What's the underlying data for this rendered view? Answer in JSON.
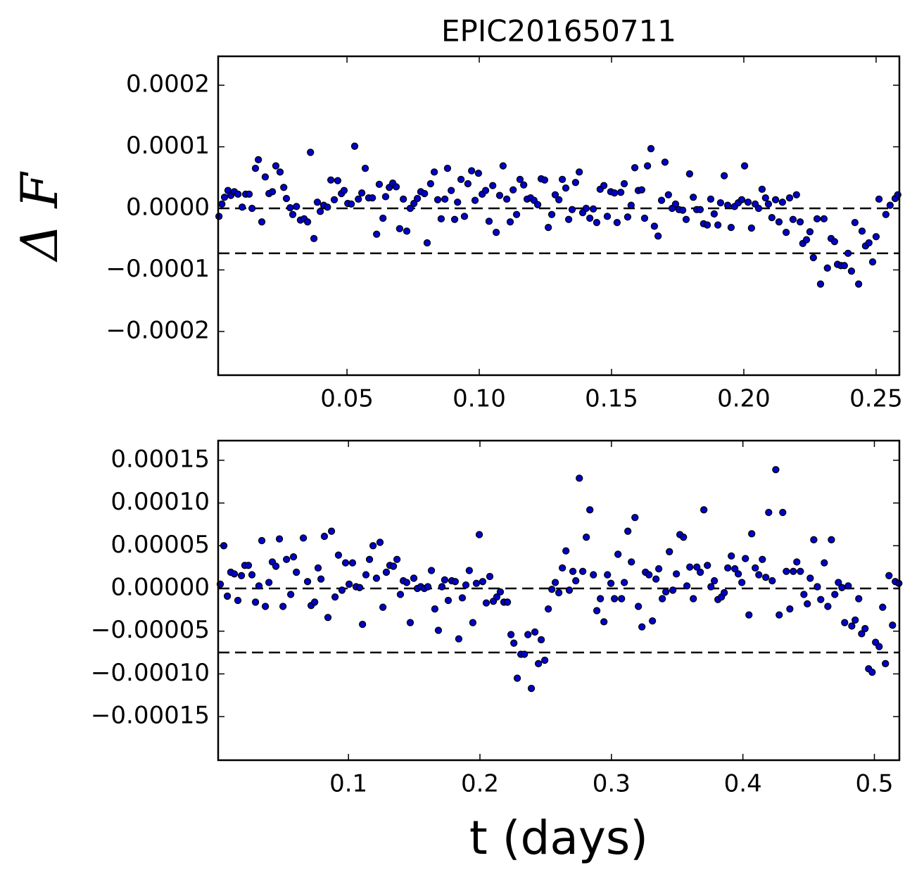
{
  "chart_data": [
    {
      "type": "scatter",
      "title": "EPIC201650711",
      "ylabel": "Δ F",
      "color": "#0000cc",
      "xlim": [
        0.0013,
        0.2588
      ],
      "ylim": [
        -0.000271,
        0.000247
      ],
      "xticks": [
        0.05,
        {
          "value": 0.1,
          "label": "0.10"
        },
        0.15,
        {
          "value": 0.2,
          "label": "0.20"
        },
        0.25
      ],
      "yticks": [
        {
          "value": -0.0002,
          "label": "−0.0002"
        },
        {
          "value": -0.0001,
          "label": "−0.0001"
        },
        {
          "value": 0,
          "label": "0.0000"
        },
        0.0001,
        0.0002
      ],
      "hlines": [
        0,
        -7.3e-05
      ],
      "x": [
        0.0016,
        0.0027,
        0.0037,
        0.005,
        0.0061,
        0.0074,
        0.0088,
        0.0104,
        0.0117,
        0.013,
        0.0141,
        0.0154,
        0.0165,
        0.0178,
        0.0191,
        0.0205,
        0.0218,
        0.0231,
        0.0247,
        0.0261,
        0.0271,
        0.0285,
        0.0295,
        0.0309,
        0.0324,
        0.0338,
        0.0351,
        0.0362,
        0.0375,
        0.0388,
        0.0399,
        0.0412,
        0.0426,
        0.0439,
        0.0452,
        0.0465,
        0.0479,
        0.0489,
        0.0503,
        0.0516,
        0.0529,
        0.0543,
        0.0556,
        0.0569,
        0.0582,
        0.0596,
        0.0612,
        0.0622,
        0.0636,
        0.0646,
        0.066,
        0.0673,
        0.0686,
        0.0699,
        0.0713,
        0.0726,
        0.0739,
        0.0753,
        0.0766,
        0.0779,
        0.0793,
        0.0803,
        0.0816,
        0.083,
        0.0843,
        0.0856,
        0.087,
        0.088,
        0.0894,
        0.0907,
        0.0918,
        0.0931,
        0.0944,
        0.0957,
        0.0971,
        0.0984,
        0.0997,
        0.1011,
        0.1024,
        0.1037,
        0.1051,
        0.1064,
        0.1077,
        0.109,
        0.1104,
        0.1117,
        0.1128,
        0.1141,
        0.1154,
        0.1168,
        0.1181,
        0.1194,
        0.1207,
        0.1221,
        0.1234,
        0.1247,
        0.1261,
        0.1274,
        0.1287,
        0.1301,
        0.1314,
        0.1327,
        0.1338,
        0.1351,
        0.1364,
        0.1378,
        0.1391,
        0.1404,
        0.1418,
        0.1431,
        0.1444,
        0.1457,
        0.1471,
        0.1484,
        0.1497,
        0.1511,
        0.1521,
        0.1535,
        0.1548,
        0.1561,
        0.1574,
        0.1588,
        0.1601,
        0.1614,
        0.1625,
        0.1636,
        0.1649,
        0.1662,
        0.1676,
        0.1689,
        0.1702,
        0.1715,
        0.1729,
        0.1742,
        0.1755,
        0.1769,
        0.1782,
        0.1795,
        0.1809,
        0.1822,
        0.1835,
        0.1848,
        0.1862,
        0.1875,
        0.1888,
        0.1902,
        0.1912,
        0.1926,
        0.1939,
        0.1952,
        0.1965,
        0.1979,
        0.1992,
        0.2003,
        0.2016,
        0.2029,
        0.2043,
        0.2056,
        0.2069,
        0.2082,
        0.2093,
        0.2106,
        0.212,
        0.2133,
        0.2146,
        0.216,
        0.2173,
        0.2186,
        0.2199,
        0.2213,
        0.2223,
        0.2237,
        0.225,
        0.2263,
        0.2277,
        0.229,
        0.2303,
        0.2316,
        0.233,
        0.2343,
        0.2354,
        0.2367,
        0.238,
        0.2394,
        0.2407,
        0.242,
        0.2434,
        0.2447,
        0.246,
        0.2473,
        0.2487,
        0.25,
        0.2511,
        0.2537,
        0.2553,
        0.2572,
        0.2582
      ],
      "values": [
        -1.3e-05,
        7e-06,
        1.8e-05,
        2.9e-05,
        2.1e-05,
        2.7e-05,
        2.3e-05,
        2e-06,
        2.3e-05,
        2.3e-05,
        0.0,
        6.5e-05,
        7.9e-05,
        -2.2e-05,
        5.1e-05,
        2.4e-05,
        2.7e-05,
        6.9e-05,
        5.9e-05,
        3.4e-05,
        1.6e-05,
        1e-06,
        -1e-05,
        3e-06,
        -1.9e-05,
        -1.7e-05,
        -2.2e-05,
        9.1e-05,
        -4.9e-05,
        1e-05,
        -5e-06,
        5e-06,
        2e-06,
        4.6e-05,
        1.4e-05,
        4.5e-05,
        2.4e-05,
        2.9e-05,
        8e-06,
        7e-06,
        0.000101,
        1.5e-05,
        2.5e-05,
        6.5e-05,
        1.7e-05,
        1.7e-05,
        -4.2e-05,
        3.9e-05,
        -1.6e-05,
        1.9e-05,
        3.4e-05,
        4.1e-05,
        3.5e-05,
        -3.3e-05,
        1.5e-05,
        -3.7e-05,
        0.0,
        8e-06,
        1.6e-05,
        2.7e-05,
        2.4e-05,
        -5.6e-05,
        4e-05,
        5.9e-05,
        1.4e-05,
        -1.7e-05,
        1.5e-05,
        6.5e-05,
        2.9e-05,
        -1.8e-05,
        1e-05,
        4.7e-05,
        -1.3e-05,
        4e-05,
        6.1e-05,
        1.3e-05,
        5.7e-05,
        2.3e-05,
        2.9e-05,
        -2.1e-05,
        3.7e-05,
        -3.9e-05,
        2.1e-05,
        6.9e-05,
        1.5e-05,
        -2.2e-05,
        3e-05,
        -1e-05,
        4.7e-05,
        3.8e-05,
        1.5e-05,
        1.7e-05,
        1.3e-05,
        6e-06,
        4.8e-05,
        4.6e-05,
        -3.1e-05,
        -1e-05,
        2.2e-05,
        1.4e-05,
        4.7e-05,
        3.3e-05,
        -1.8e-05,
        -2e-06,
        4.2e-05,
        5.9e-05,
        -7e-06,
        0.0,
        -1.6e-05,
        -1e-06,
        -2.3e-05,
        3.1e-05,
        3.7e-05,
        -1.3e-05,
        2.7e-05,
        2.5e-05,
        -2.3e-05,
        2.6e-05,
        4e-05,
        -1.4e-05,
        5e-06,
        6.6e-05,
        2.9e-05,
        3e-05,
        -1.6e-05,
        6.9e-05,
        9.7e-05,
        -2.9e-05,
        -4.5e-05,
        1.3e-05,
        7.5e-05,
        2.2e-05,
        0.0,
        7e-06,
        -2e-06,
        -3e-06,
        -1.8e-05,
        5.6e-05,
        1.8e-05,
        -2e-06,
        -2e-06,
        -2.5e-05,
        -2.7e-05,
        1.5e-05,
        -9e-06,
        -2.7e-05,
        9e-06,
        5.3e-05,
        5e-06,
        -3.1e-05,
        3e-06,
        9e-06,
        1.4e-05,
        6.9e-05,
        1e-05,
        -3.2e-05,
        7e-06,
        0.0,
        3.1e-05,
        1.7e-05,
        7e-06,
        -1.5e-05,
        1.4e-05,
        -2.2e-05,
        1e-05,
        -3.9e-05,
        1.7e-05,
        -1.8e-05,
        2.2e-05,
        -2.2e-05,
        -5.7e-05,
        -5.1e-05,
        -3.8e-05,
        -8e-05,
        -1.7e-05,
        -0.000123,
        -1.7e-05,
        -9.7e-05,
        -4.9e-05,
        -5.4e-05,
        -9.1e-05,
        -9.3e-05,
        -9.3e-05,
        -7.3e-05,
        -0.000102,
        -2.3e-05,
        -0.000123,
        -3.7e-05,
        -6.1e-05,
        -5.6e-05,
        -8.7e-05,
        -4.6e-05,
        1.5e-05,
        -1e-05,
        5e-06,
        1.6e-05,
        2.2e-05
      ]
    },
    {
      "type": "scatter",
      "xlabel": "t (days)",
      "color": "#0000cc",
      "xlim": [
        0.0009,
        0.519
      ],
      "ylim": [
        -0.000201,
        0.000173
      ],
      "xticks": [
        0.1,
        0.2,
        0.3,
        0.4,
        0.5
      ],
      "yticks": [
        {
          "value": -0.00015,
          "label": "−0.00015"
        },
        {
          "value": -0.0001,
          "label": "−0.00010"
        },
        {
          "value": -5e-05,
          "label": "−0.00005"
        },
        {
          "value": 0,
          "label": "0.00000"
        },
        5e-05,
        {
          "value": 0.0001,
          "label": "0.00010"
        },
        0.00015
      ],
      "hlines": [
        0,
        -7.5e-05
      ],
      "x": [
        0.0025,
        0.0052,
        0.0079,
        0.0105,
        0.0132,
        0.0159,
        0.0186,
        0.0212,
        0.0239,
        0.0266,
        0.0293,
        0.0319,
        0.0341,
        0.0368,
        0.0395,
        0.0421,
        0.0448,
        0.0475,
        0.0502,
        0.0529,
        0.0561,
        0.0582,
        0.0604,
        0.0657,
        0.0689,
        0.0716,
        0.0743,
        0.0769,
        0.0791,
        0.0817,
        0.0844,
        0.0871,
        0.0898,
        0.0924,
        0.0951,
        0.0978,
        0.1005,
        0.1031,
        0.1058,
        0.1085,
        0.1107,
        0.1133,
        0.116,
        0.1187,
        0.1213,
        0.124,
        0.1262,
        0.1288,
        0.1315,
        0.1342,
        0.1369,
        0.1395,
        0.1417,
        0.1443,
        0.147,
        0.1497,
        0.1524,
        0.155,
        0.1577,
        0.1604,
        0.1631,
        0.1657,
        0.1684,
        0.1711,
        0.1732,
        0.1759,
        0.1786,
        0.1812,
        0.1839,
        0.1866,
        0.1893,
        0.1919,
        0.1946,
        0.1973,
        0.1995,
        0.2021,
        0.2048,
        0.2075,
        0.2102,
        0.2128,
        0.2155,
        0.2182,
        0.2209,
        0.2236,
        0.2258,
        0.2284,
        0.2311,
        0.2338,
        0.2365,
        0.2391,
        0.2418,
        0.2445,
        0.2466,
        0.2493,
        0.252,
        0.2547,
        0.2573,
        0.26,
        0.2627,
        0.2654,
        0.268,
        0.2707,
        0.2729,
        0.2756,
        0.2782,
        0.2809,
        0.2836,
        0.2863,
        0.2889,
        0.2916,
        0.2943,
        0.297,
        0.2996,
        0.3023,
        0.305,
        0.3077,
        0.3098,
        0.3125,
        0.3152,
        0.3179,
        0.3205,
        0.3232,
        0.3259,
        0.3286,
        0.3312,
        0.3339,
        0.336,
        0.3387,
        0.3414,
        0.3441,
        0.3467,
        0.3494,
        0.3521,
        0.3548,
        0.3574,
        0.3596,
        0.3623,
        0.365,
        0.3676,
        0.3703,
        0.373,
        0.3757,
        0.3783,
        0.381,
        0.3837,
        0.3858,
        0.3885,
        0.3912,
        0.3939,
        0.3965,
        0.3992,
        0.4019,
        0.4046,
        0.4067,
        0.4094,
        0.4121,
        0.4148,
        0.4174,
        0.4196,
        0.4223,
        0.425,
        0.4276,
        0.4303,
        0.433,
        0.4357,
        0.4383,
        0.441,
        0.4437,
        0.4464,
        0.449,
        0.4512,
        0.4539,
        0.4566,
        0.4592,
        0.4619,
        0.4646,
        0.4673,
        0.4699,
        0.4726,
        0.4753,
        0.4774,
        0.4801,
        0.4828,
        0.4854,
        0.4881,
        0.4903,
        0.4929,
        0.4956,
        0.4983,
        0.5009,
        0.5036,
        0.5063,
        0.5084,
        0.5111,
        0.5138,
        0.5159,
        0.5186
      ],
      "values": [
        5e-06,
        5e-05,
        -9e-06,
        1.9e-05,
        1.7e-05,
        -1.4e-05,
        1.5e-05,
        2.7e-05,
        2.7e-05,
        1.6e-05,
        -1.6e-05,
        3e-06,
        5.6e-05,
        -2.1e-05,
        7e-06,
        3.1e-05,
        2.6e-05,
        5.8e-05,
        -2.1e-05,
        3.4e-05,
        -7e-06,
        3.7e-05,
        1.9e-05,
        5.9e-05,
        8e-06,
        -2e-05,
        -1.6e-05,
        2.4e-05,
        1.1e-05,
        6.1e-05,
        -3.4e-05,
        6.7e-05,
        -1e-05,
        3.9e-05,
        -2e-06,
        3e-05,
        5e-06,
        3e-05,
        2e-06,
        1e-06,
        -4.2e-05,
        1.6e-05,
        3.4e-05,
        5e-05,
        1.2e-05,
        5.4e-05,
        -2.2e-05,
        1.9e-05,
        2.7e-05,
        2.6e-05,
        3.4e-05,
        -7e-06,
        9e-06,
        7e-06,
        -4e-05,
        1.2e-05,
        0.0,
        2e-06,
        0.0,
        2e-06,
        2.1e-05,
        -2.4e-05,
        -4.9e-05,
        2e-06,
        1e-05,
        -1.4e-05,
        9e-06,
        8e-06,
        -5.9e-05,
        -1.1e-05,
        4e-06,
        2.1e-05,
        -4e-05,
        6e-06,
        6.3e-05,
        8e-06,
        -1.7e-05,
        1.4e-05,
        -1.5e-05,
        -1e-05,
        -4e-06,
        -1.6e-05,
        -1.6e-05,
        -5.4e-05,
        -6.4e-05,
        -0.000105,
        -7.7e-05,
        -7.7e-05,
        -5.4e-05,
        -0.000117,
        -5.1e-05,
        -8.8e-05,
        -6e-05,
        -8.4e-05,
        -2.4e-05,
        -1e-06,
        7e-06,
        -5e-06,
        2.4e-05,
        4.4e-05,
        -2e-06,
        2e-05,
        9e-06,
        0.000129,
        2e-05,
        6e-05,
        9.2e-05,
        1.6e-05,
        -2.6e-05,
        -1.2e-05,
        -3.9e-05,
        1.6e-05,
        6e-06,
        -1.2e-05,
        4e-05,
        -1.2e-05,
        7e-06,
        6.7e-05,
        3.1e-05,
        8.3e-05,
        -2.1e-05,
        -4.5e-05,
        1.9e-05,
        1.6e-05,
        -3.8e-05,
        1.1e-05,
        2.3e-05,
        -1.2e-05,
        -4e-06,
        4.3e-05,
        -2e-06,
        1.7e-05,
        6.3e-05,
        6e-05,
        3e-06,
        2.5e-05,
        -1.2e-05,
        2.5e-05,
        1.9e-05,
        9.2e-05,
        2.7e-05,
        2e-06,
        9e-06,
        -1.3e-05,
        -1e-05,
        -5e-06,
        2.4e-05,
        3.8e-05,
        2.3e-05,
        1.7e-05,
        7e-06,
        3.5e-05,
        -3.1e-05,
        6.4e-05,
        2.4e-05,
        1.6e-05,
        3.4e-05,
        1.3e-05,
        8.9e-05,
        9e-06,
        0.000139,
        -3.1e-05,
        8.9e-05,
        2e-05,
        -2.4e-05,
        2e-05,
        3.1e-05,
        2e-05,
        -7e-06,
        -1.8e-05,
        1.2e-05,
        5.7e-05,
        2e-06,
        -1.3e-05,
        3e-05,
        -2.1e-05,
        5.7e-05,
        -7e-06,
        7e-06,
        1e-06,
        -4e-05,
        3e-06,
        -4.4e-05,
        -3.7e-05,
        -1.2e-05,
        -5.3e-05,
        -4.7e-05,
        -9.4e-05,
        -9.8e-05,
        -6.3e-05,
        -6.8e-05,
        -2.2e-05,
        -8.8e-05,
        1.5e-05,
        -4.3e-05,
        8e-06,
        6e-06
      ]
    }
  ]
}
